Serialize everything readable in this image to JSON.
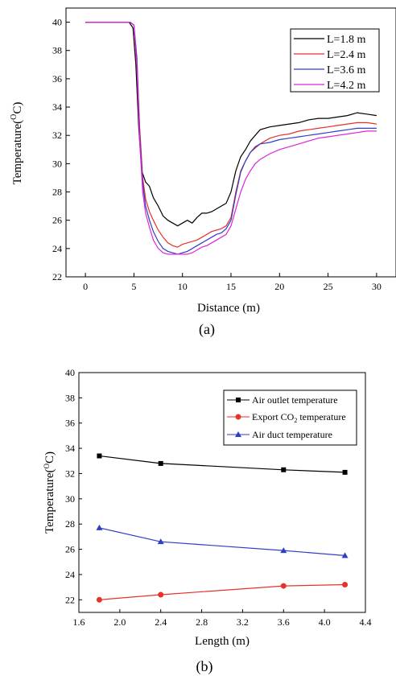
{
  "chart_data": [
    {
      "type": "line",
      "caption": "(a)",
      "xlabel": "Distance (m)",
      "ylabel_main": "Temperature(",
      "ylabel_sup": "O",
      "ylabel_end": "C)",
      "xlim": [
        -2,
        32
      ],
      "ylim": [
        22,
        41
      ],
      "xticks": [
        0,
        5,
        10,
        15,
        20,
        25,
        30
      ],
      "yticks": [
        22,
        24,
        26,
        28,
        30,
        32,
        34,
        36,
        38,
        40
      ],
      "legend_position": "top-right",
      "series": [
        {
          "name": "L=1.8 m",
          "color": "#000000",
          "x": [
            0,
            4.5,
            4.9,
            5.2,
            5.5,
            5.8,
            6.2,
            6.6,
            7,
            7.5,
            8,
            8.5,
            9,
            9.5,
            10,
            10.5,
            11,
            11.5,
            12,
            12.5,
            13,
            13.5,
            14,
            14.5,
            15,
            15.5,
            16,
            16.5,
            17,
            17.5,
            18,
            19,
            20,
            21,
            22,
            23,
            24,
            25,
            26,
            27,
            28,
            29,
            30
          ],
          "y": [
            40,
            40,
            39.6,
            37,
            32.5,
            29.5,
            28.7,
            28.4,
            27.6,
            27,
            26.3,
            26,
            25.8,
            25.6,
            25.8,
            26,
            25.8,
            26.2,
            26.5,
            26.5,
            26.6,
            26.8,
            27,
            27.2,
            28,
            29.5,
            30.5,
            31,
            31.6,
            32,
            32.4,
            32.6,
            32.7,
            32.8,
            32.9,
            33.1,
            33.2,
            33.2,
            33.3,
            33.4,
            33.6,
            33.5,
            33.4
          ]
        },
        {
          "name": "L=2.4 m",
          "color": "#e8312a",
          "x": [
            0,
            4.6,
            5,
            5.3,
            5.6,
            5.9,
            6.2,
            6.6,
            7,
            7.5,
            8,
            8.5,
            9,
            9.5,
            10,
            10.5,
            11,
            11.5,
            12,
            12.5,
            13,
            13.5,
            14,
            14.5,
            15,
            15.5,
            16,
            16.5,
            17,
            17.5,
            18,
            19,
            20,
            21,
            22,
            23,
            24,
            25,
            26,
            27,
            28,
            29,
            30
          ],
          "y": [
            40,
            40,
            39.8,
            37.5,
            32.5,
            29,
            27.5,
            26.6,
            26,
            25.3,
            24.8,
            24.4,
            24.2,
            24.1,
            24.3,
            24.4,
            24.5,
            24.6,
            24.8,
            25,
            25.2,
            25.3,
            25.4,
            25.6,
            26.2,
            28,
            29.5,
            30.2,
            30.8,
            31.1,
            31.4,
            31.8,
            32,
            32.1,
            32.3,
            32.4,
            32.5,
            32.6,
            32.7,
            32.8,
            32.9,
            32.9,
            32.8
          ]
        },
        {
          "name": "L=3.6 m",
          "color": "#2e3fc4",
          "x": [
            0,
            4.6,
            5,
            5.3,
            5.6,
            5.9,
            6.2,
            6.6,
            7,
            7.5,
            8,
            8.5,
            9,
            9.5,
            10,
            10.5,
            11,
            11.5,
            12,
            12.5,
            13,
            13.5,
            14,
            14.5,
            15,
            15.5,
            16,
            16.5,
            17,
            17.5,
            18,
            19,
            20,
            21,
            22,
            23,
            24,
            25,
            26,
            27,
            28,
            29,
            30
          ],
          "y": [
            40,
            40,
            39.8,
            37.5,
            32,
            28.6,
            27,
            26,
            25.2,
            24.5,
            24,
            23.8,
            23.7,
            23.6,
            23.7,
            23.8,
            24,
            24.2,
            24.4,
            24.6,
            24.8,
            25,
            25.1,
            25.4,
            26,
            27.8,
            29.4,
            30.2,
            30.8,
            31.2,
            31.4,
            31.5,
            31.7,
            31.8,
            31.9,
            32,
            32.1,
            32.2,
            32.3,
            32.4,
            32.5,
            32.5,
            32.5
          ]
        },
        {
          "name": "L=4.2 m",
          "color": "#e023d6",
          "x": [
            0,
            4.6,
            5,
            5.3,
            5.6,
            5.9,
            6.2,
            6.6,
            7,
            7.5,
            8,
            8.5,
            9,
            9.5,
            10,
            10.5,
            11,
            11.5,
            12,
            12.5,
            13,
            13.5,
            14,
            14.5,
            15,
            15.5,
            16,
            16.5,
            17,
            17.5,
            18,
            19,
            20,
            21,
            22,
            23,
            24,
            25,
            26,
            27,
            28,
            29,
            30
          ],
          "y": [
            40,
            40,
            39.8,
            37,
            31.5,
            28,
            26.5,
            25.5,
            24.6,
            24,
            23.7,
            23.6,
            23.6,
            23.6,
            23.6,
            23.6,
            23.7,
            23.9,
            24.1,
            24.2,
            24.4,
            24.6,
            24.8,
            25,
            25.6,
            26.8,
            28,
            28.9,
            29.5,
            30,
            30.3,
            30.7,
            31,
            31.2,
            31.4,
            31.6,
            31.8,
            31.9,
            32,
            32.1,
            32.2,
            32.3,
            32.3
          ]
        }
      ]
    },
    {
      "type": "line",
      "caption": "(b)",
      "xlabel": "Length (m)",
      "ylabel_main": "Temperature(",
      "ylabel_sup": "O",
      "ylabel_end": "C)",
      "xlim": [
        1.6,
        4.4
      ],
      "ylim": [
        21,
        40
      ],
      "xticks": [
        "1.6",
        "2.0",
        "2.4",
        "2.8",
        "3.2",
        "3.6",
        "4.0",
        "4.4"
      ],
      "yticks": [
        22,
        24,
        26,
        28,
        30,
        32,
        34,
        36,
        38,
        40
      ],
      "legend_position": "top-right",
      "series": [
        {
          "name": "Air outlet  temperature",
          "color": "#000000",
          "marker": "square",
          "x": [
            1.8,
            2.4,
            3.6,
            4.2
          ],
          "y": [
            33.4,
            32.8,
            32.3,
            32.1
          ]
        },
        {
          "name_main": "Export CO",
          "name_sub": "2",
          "name_end": "  temperature",
          "color": "#e8312a",
          "marker": "circle",
          "x": [
            1.8,
            2.4,
            3.6,
            4.2
          ],
          "y": [
            22.0,
            22.4,
            23.1,
            23.2
          ]
        },
        {
          "name": "Air duct  temperature",
          "color": "#2e3fc4",
          "marker": "triangle",
          "x": [
            1.8,
            2.4,
            3.6,
            4.2
          ],
          "y": [
            27.7,
            26.6,
            25.9,
            25.5
          ]
        }
      ]
    }
  ]
}
